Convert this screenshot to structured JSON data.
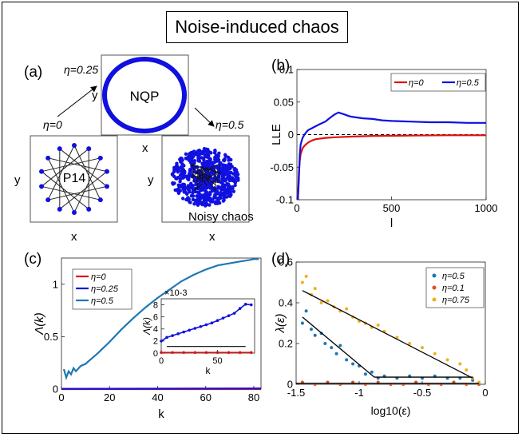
{
  "title": "Noise-induced chaos",
  "panel_a": {
    "label": "(a)",
    "eta_top": "η=0.25",
    "eta_left": "η=0",
    "eta_right": "η=0.5",
    "box_top_text": "NQP",
    "box_left_text": "P14",
    "box_right_text": "Noisy chaos",
    "axis_x": "x",
    "axis_y": "y"
  },
  "panel_b": {
    "label": "(b)"
  },
  "panel_c": {
    "label": "(c)"
  },
  "panel_d": {
    "label": "(d)"
  },
  "colors": {
    "red": "#e01010",
    "blue": "#1010e0",
    "blue2": "#1f77b4",
    "orange": "#d95319",
    "gold": "#edb120"
  },
  "chart_data": [
    {
      "id": "b",
      "type": "line",
      "xlabel": "l",
      "ylabel": "LLE",
      "xlim": [
        0,
        1000
      ],
      "ylim": [
        -0.1,
        0.1
      ],
      "xticks": [
        "0",
        "500",
        "1000"
      ],
      "yticks": [
        "-0.1",
        "-0.05",
        "0",
        "0.05",
        "0.1"
      ],
      "legend": "top-right",
      "series": [
        {
          "name": "η=0",
          "color": "#e01010",
          "x": [
            5,
            10,
            15,
            20,
            30,
            40,
            60,
            80,
            100,
            150,
            200,
            300,
            400,
            600,
            800,
            1000
          ],
          "y": [
            -0.1,
            -0.06,
            -0.04,
            -0.03,
            -0.021,
            -0.017,
            -0.012,
            -0.009,
            -0.007,
            -0.005,
            -0.004,
            -0.003,
            -0.002,
            -0.0015,
            -0.001,
            -0.001
          ]
        },
        {
          "name": "η=0.5",
          "color": "#1010e0",
          "x": [
            5,
            10,
            15,
            20,
            30,
            40,
            50,
            60,
            80,
            100,
            120,
            150,
            180,
            200,
            220,
            250,
            280,
            300,
            350,
            400,
            450,
            500,
            600,
            700,
            800,
            900,
            1000
          ],
          "y": [
            -0.1,
            -0.07,
            -0.03,
            -0.015,
            -0.005,
            0.0,
            0.004,
            0.007,
            0.01,
            0.013,
            0.016,
            0.02,
            0.027,
            0.031,
            0.034,
            0.031,
            0.028,
            0.027,
            0.025,
            0.024,
            0.022,
            0.021,
            0.02,
            0.019,
            0.019,
            0.018,
            0.018
          ]
        }
      ]
    },
    {
      "id": "c",
      "type": "line",
      "xlabel": "k",
      "ylabel": "Λ(k)",
      "xlim": [
        0,
        83
      ],
      "ylim": [
        0,
        1.25
      ],
      "xticks": [
        "0",
        "20",
        "40",
        "60",
        "80"
      ],
      "yticks": [
        "0",
        "0.5",
        "1"
      ],
      "legend": "top-left",
      "series": [
        {
          "name": "η=0",
          "color": "#e01010",
          "x": [
            0,
            20,
            40,
            60,
            83
          ],
          "y": [
            0,
            0,
            0,
            0,
            0
          ]
        },
        {
          "name": "η=0.25",
          "color": "#1010e0",
          "x": [
            0,
            20,
            40,
            60,
            83
          ],
          "y": [
            0.002,
            0.003,
            0.004,
            0.005,
            0.006
          ]
        },
        {
          "name": "η=0.5",
          "color": "#1f77b4",
          "x": [
            1,
            2,
            3,
            4,
            5,
            6,
            8,
            10,
            12,
            15,
            20,
            25,
            30,
            35,
            40,
            45,
            50,
            55,
            60,
            65,
            70,
            75,
            78,
            80,
            82
          ],
          "y": [
            0.19,
            0.11,
            0.17,
            0.14,
            0.2,
            0.17,
            0.22,
            0.24,
            0.28,
            0.34,
            0.45,
            0.57,
            0.68,
            0.78,
            0.87,
            0.95,
            1.03,
            1.09,
            1.14,
            1.18,
            1.2,
            1.22,
            1.23,
            1.24,
            1.24
          ]
        }
      ],
      "inset": {
        "xlabel": "k",
        "ylabel": "Λ(k)",
        "exponent": "×10-3",
        "xlim": [
          0,
          83
        ],
        "ylim": [
          0,
          9
        ],
        "xticks": [
          "0",
          "50"
        ],
        "yticks": [
          "0",
          "2",
          "4",
          "6",
          "8"
        ],
        "series": [
          {
            "name": "η=0",
            "color": "#e01010",
            "x": [
              0,
              10,
              20,
              30,
              40,
              50,
              60,
              70,
              80
            ],
            "y": [
              0.1,
              0.1,
              0.1,
              0.1,
              0.1,
              0.1,
              0.1,
              0.1,
              0.1
            ]
          },
          {
            "name": "η=0.25",
            "color": "#1010e0",
            "x": [
              0,
              5,
              10,
              15,
              20,
              25,
              30,
              35,
              40,
              45,
              50,
              55,
              60,
              65,
              70,
              75,
              80
            ],
            "y": [
              2.0,
              2.6,
              2.9,
              3.2,
              3.5,
              3.8,
              4.1,
              4.4,
              4.7,
              5.0,
              5.4,
              5.8,
              6.2,
              6.6,
              7.4,
              8.1,
              8.0
            ]
          }
        ]
      }
    },
    {
      "id": "d",
      "type": "scatter",
      "xlabel": "log10(ε)",
      "ylabel": "λ(ε)",
      "xlim": [
        -1.5,
        0
      ],
      "ylim": [
        0,
        0.6
      ],
      "xticks": [
        "-1.5",
        "-1",
        "-0.5",
        "0"
      ],
      "yticks": [
        "0",
        "0.2",
        "0.4",
        "0.6"
      ],
      "legend": "top-right",
      "series": [
        {
          "name": "η=0.5",
          "color": "#1f77b4",
          "x": [
            -1.45,
            -1.42,
            -1.38,
            -1.35,
            -1.3,
            -1.27,
            -1.22,
            -1.18,
            -1.15,
            -1.1,
            -1.05,
            -1.0,
            -0.95,
            -0.9,
            -0.85,
            -0.8,
            -0.7,
            -0.6,
            -0.5,
            -0.4,
            -0.3,
            -0.2,
            -0.1
          ],
          "y": [
            0.3,
            0.36,
            0.27,
            0.24,
            0.25,
            0.2,
            0.18,
            0.15,
            0.19,
            0.12,
            0.1,
            0.09,
            0.05,
            0.06,
            0.03,
            0.04,
            0.03,
            0.04,
            0.03,
            0.04,
            0.03,
            0.03,
            0.02
          ]
        },
        {
          "name": "η=0.1",
          "color": "#d95319",
          "x": [
            -1.45,
            -1.35,
            -1.25,
            -1.15,
            -1.05,
            -0.95,
            -0.85,
            -0.75,
            -0.65,
            -0.55,
            -0.45,
            -0.35,
            -0.25,
            -0.15,
            -0.05
          ],
          "y": [
            0.01,
            0.0,
            0.01,
            0.0,
            0.01,
            0.0,
            0.01,
            0.0,
            0.0,
            0.01,
            0.0,
            0.0,
            0.01,
            0.0,
            0.0
          ]
        },
        {
          "name": "η=0.75",
          "color": "#edb120",
          "x": [
            -1.45,
            -1.42,
            -1.38,
            -1.35,
            -1.3,
            -1.25,
            -1.2,
            -1.15,
            -1.1,
            -1.05,
            -1.0,
            -0.95,
            -0.9,
            -0.85,
            -0.8,
            -0.7,
            -0.6,
            -0.5,
            -0.4,
            -0.3,
            -0.2,
            -0.15,
            -0.1,
            -0.05
          ],
          "y": [
            0.5,
            0.53,
            0.44,
            0.47,
            0.4,
            0.41,
            0.38,
            0.36,
            0.37,
            0.33,
            0.31,
            0.3,
            0.28,
            0.29,
            0.26,
            0.23,
            0.2,
            0.18,
            0.15,
            0.12,
            0.1,
            0.07,
            0.03,
            0.01
          ]
        }
      ]
    }
  ]
}
